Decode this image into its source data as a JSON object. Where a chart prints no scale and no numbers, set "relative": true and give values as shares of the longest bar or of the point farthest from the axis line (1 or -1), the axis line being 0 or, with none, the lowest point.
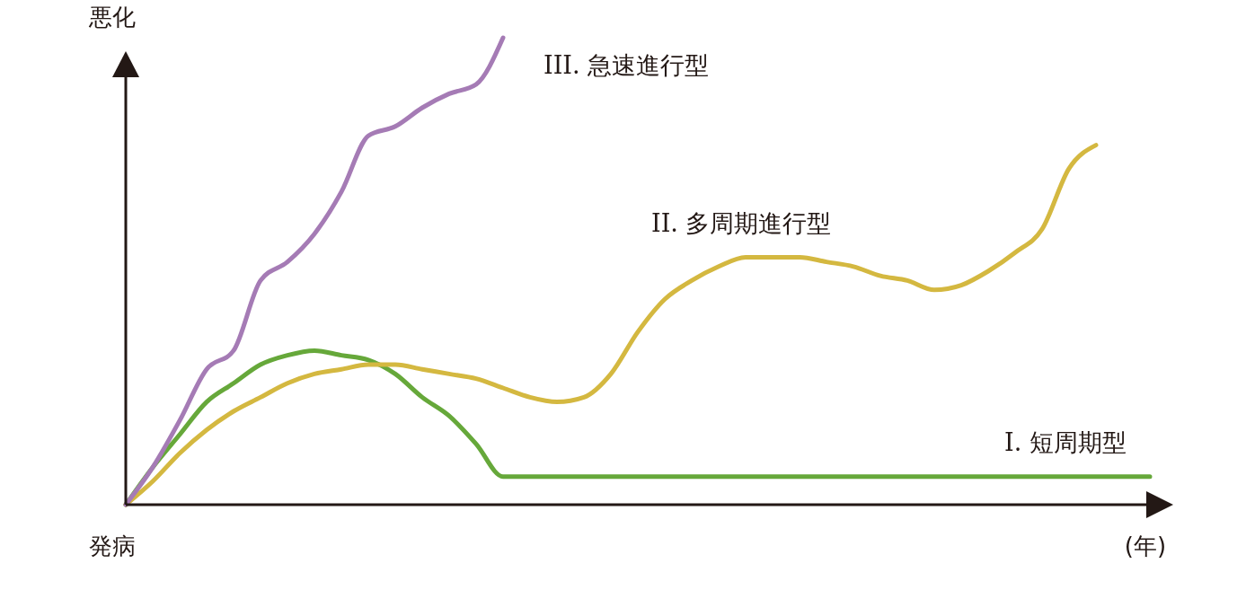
{
  "chart_data": {
    "type": "line",
    "relative": true,
    "ylabel": "悪化",
    "xlabel": "(年)",
    "annotations": [
      "発病"
    ],
    "categories": [
      null,
      null,
      null,
      null,
      null,
      null,
      null,
      null,
      null,
      null,
      null,
      null,
      null,
      null,
      null,
      null,
      null,
      null,
      null,
      null,
      null,
      null,
      null,
      null,
      null,
      null,
      null,
      null,
      null,
      null,
      null,
      null,
      null,
      null,
      null,
      null,
      null,
      null,
      null
    ],
    "series": [
      {
        "name": "I. 短周期型",
        "color": "#66a83a",
        "values": [
          0,
          0.08,
          0.15,
          0.22,
          0.26,
          0.3,
          0.32,
          0.33,
          0.32,
          0.31,
          0.28,
          0.23,
          0.19,
          0.13,
          0.06,
          0.06,
          0.06,
          0.06,
          0.06,
          0.06,
          0.06,
          0.06,
          0.06,
          0.06,
          0.06,
          0.06,
          0.06,
          0.06,
          0.06,
          0.06,
          0.06,
          0.06,
          0.06,
          0.06,
          0.06,
          0.06,
          0.06,
          0.06,
          0.06
        ]
      },
      {
        "name": "II. 多周期進行型",
        "color": "#d4b840",
        "values": [
          0,
          0.05,
          0.11,
          0.16,
          0.2,
          0.23,
          0.26,
          0.28,
          0.29,
          0.3,
          0.3,
          0.29,
          0.28,
          0.27,
          0.25,
          0.23,
          0.22,
          0.23,
          0.28,
          0.37,
          0.44,
          0.48,
          0.51,
          0.53,
          0.53,
          0.53,
          0.52,
          0.51,
          0.49,
          0.48,
          0.46,
          0.47,
          0.5,
          0.54,
          0.59,
          0.72,
          0.77,
          null,
          null
        ]
      },
      {
        "name": "III. 急速進行型",
        "color": "#a57bb5",
        "values": [
          0,
          0.08,
          0.18,
          0.29,
          0.33,
          0.48,
          0.52,
          0.58,
          0.67,
          0.79,
          0.81,
          0.85,
          0.88,
          0.9,
          1,
          null,
          null,
          null,
          null,
          null,
          null,
          null,
          null,
          null,
          null,
          null,
          null,
          null,
          null,
          null,
          null,
          null,
          null,
          null,
          null,
          null,
          null,
          null,
          null
        ]
      }
    ]
  }
}
